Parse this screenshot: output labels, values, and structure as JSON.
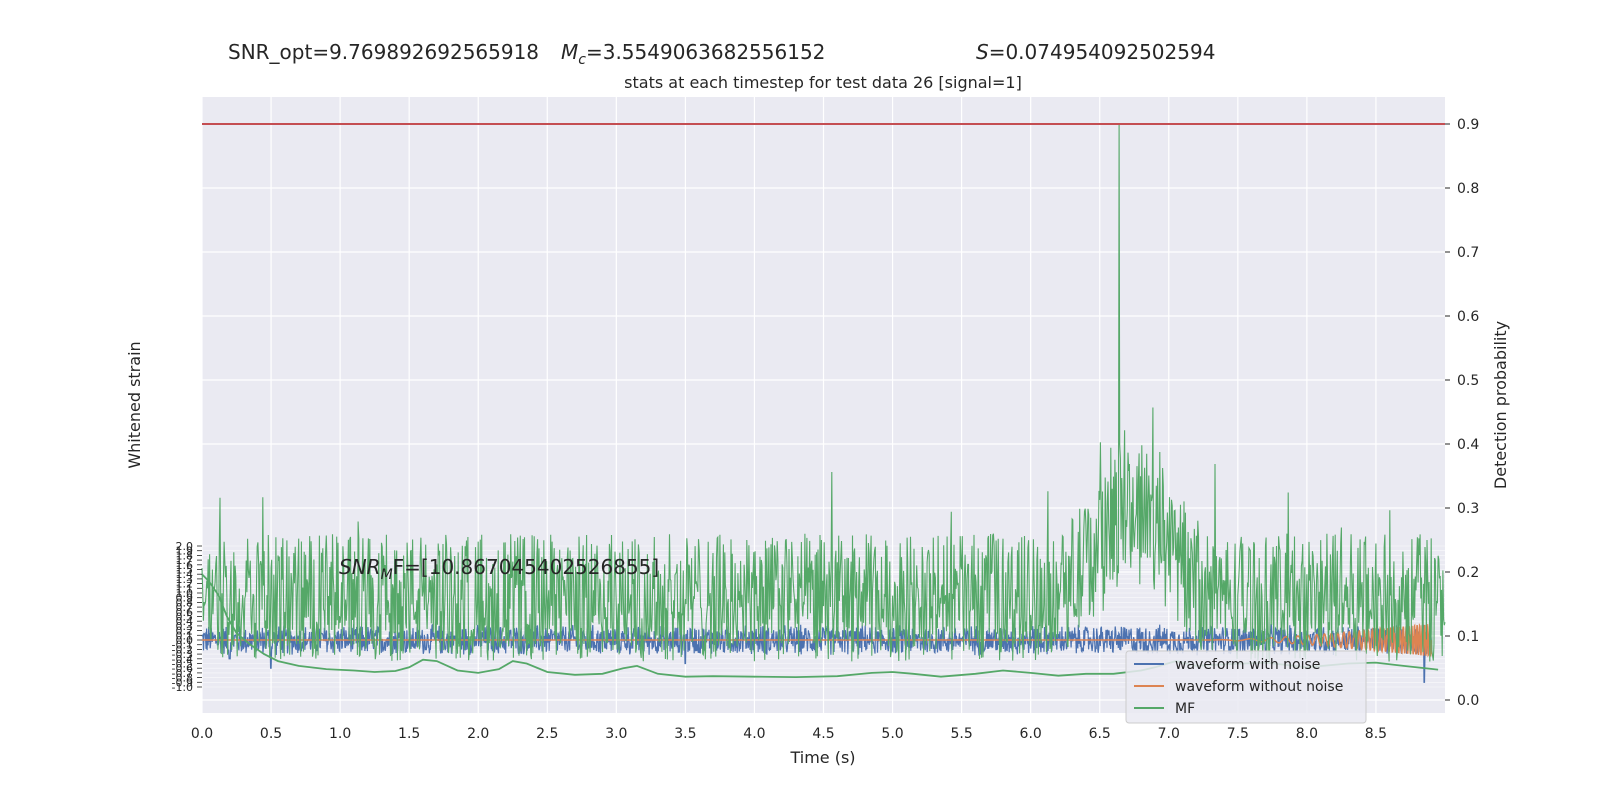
{
  "header": {
    "snr_opt": "SNR_opt=9.769892692565918",
    "mc_symbol": "M",
    "mc_sub": "c",
    "mc_value": "=3.5549063682556152",
    "s_symbol": "S",
    "s_value": "=0.074954092502594"
  },
  "chart_data": {
    "type": "line",
    "title": "stats at each timestep for test data 26 [signal=1]",
    "xlabel": "Time (s)",
    "ylabel_left": "Whitened strain",
    "ylabel_right": "Detection probability",
    "xlim": [
      0.0,
      9.0
    ],
    "x_ticks": [
      "0.0",
      "0.5",
      "1.0",
      "1.5",
      "2.0",
      "2.5",
      "3.0",
      "3.5",
      "4.0",
      "4.5",
      "5.0",
      "5.5",
      "6.0",
      "6.5",
      "7.0",
      "7.5",
      "8.0",
      "8.5"
    ],
    "ylim_right": [
      -0.013,
      0.942
    ],
    "y_ticks_right": [
      "0.0",
      "0.1",
      "0.2",
      "0.3",
      "0.4",
      "0.5",
      "0.6",
      "0.7",
      "0.8",
      "0.9"
    ],
    "ylim_left": [
      -1.2,
      2.0
    ],
    "y_ticks_left": [
      "2.0",
      "1.9",
      "1.8",
      "1.7",
      "1.6",
      "1.5",
      "1.4",
      "1.3",
      "1.2",
      "1.1",
      "1.0",
      "0.9",
      "0.8",
      "0.7",
      "0.6",
      "0.5",
      "0.4",
      "0.3",
      "0.2",
      "0.1",
      "0.0",
      "-0.1",
      "-0.2",
      "-0.3",
      "-0.4",
      "-0.5",
      "-0.6",
      "-0.7",
      "-0.8",
      "-0.9",
      "-1.0"
    ],
    "threshold": 0.9,
    "annotation": {
      "prefix": "SNR",
      "sub": "M",
      "suffix": "F=[10.867045402526855]",
      "x": 1.0,
      "y": 0.2
    },
    "legend_position": "lower right",
    "grid": true,
    "series": [
      {
        "name": "waveform with noise",
        "color": "#4c72b0",
        "axis": "left",
        "baseline": 0.0,
        "amplitude": 0.35,
        "spikes": [
          [
            0.2,
            -0.4
          ],
          [
            0.5,
            -0.6
          ],
          [
            3.5,
            -0.5
          ],
          [
            8.85,
            -0.9
          ]
        ]
      },
      {
        "name": "waveform without noise",
        "color": "#dd8452",
        "axis": "left",
        "chirp_start": 7.3,
        "chirp_end": 8.9,
        "max_amplitude": 0.35
      },
      {
        "name": "MF",
        "color": "#55a868",
        "axis": "left",
        "points": [
          [
            0.0,
            1.4
          ],
          [
            0.05,
            1.25
          ],
          [
            0.12,
            0.95
          ],
          [
            0.18,
            0.5
          ],
          [
            0.25,
            0.15
          ],
          [
            0.35,
            -0.1
          ],
          [
            0.45,
            -0.3
          ],
          [
            0.55,
            -0.45
          ],
          [
            0.7,
            -0.55
          ],
          [
            0.9,
            -0.62
          ],
          [
            1.1,
            -0.65
          ],
          [
            1.25,
            -0.68
          ],
          [
            1.4,
            -0.66
          ],
          [
            1.5,
            -0.58
          ],
          [
            1.6,
            -0.42
          ],
          [
            1.7,
            -0.45
          ],
          [
            1.85,
            -0.65
          ],
          [
            2.0,
            -0.7
          ],
          [
            2.15,
            -0.62
          ],
          [
            2.25,
            -0.45
          ],
          [
            2.35,
            -0.5
          ],
          [
            2.5,
            -0.68
          ],
          [
            2.7,
            -0.74
          ],
          [
            2.9,
            -0.72
          ],
          [
            3.05,
            -0.6
          ],
          [
            3.15,
            -0.55
          ],
          [
            3.3,
            -0.72
          ],
          [
            3.5,
            -0.78
          ],
          [
            3.7,
            -0.77
          ],
          [
            4.0,
            -0.78
          ],
          [
            4.3,
            -0.79
          ],
          [
            4.6,
            -0.77
          ],
          [
            4.85,
            -0.7
          ],
          [
            5.0,
            -0.68
          ],
          [
            5.15,
            -0.72
          ],
          [
            5.35,
            -0.78
          ],
          [
            5.6,
            -0.72
          ],
          [
            5.8,
            -0.65
          ],
          [
            6.0,
            -0.7
          ],
          [
            6.2,
            -0.76
          ],
          [
            6.4,
            -0.72
          ],
          [
            6.6,
            -0.72
          ],
          [
            6.8,
            -0.65
          ],
          [
            6.9,
            -0.58
          ],
          [
            7.05,
            -0.45
          ],
          [
            7.2,
            -0.55
          ],
          [
            7.4,
            -0.52
          ],
          [
            7.7,
            -0.48
          ],
          [
            8.0,
            -0.58
          ],
          [
            8.3,
            -0.5
          ],
          [
            8.5,
            -0.48
          ],
          [
            8.7,
            -0.55
          ],
          [
            8.95,
            -0.63
          ]
        ]
      },
      {
        "name": "Detection probability",
        "color": "#55a868",
        "axis": "right",
        "base": 0.16,
        "noise": 0.1,
        "peak_x": 6.64,
        "peak_y": 0.9,
        "hump_center": 6.75,
        "hump_width": 0.35,
        "hump_height": 0.18
      }
    ]
  },
  "colors": {
    "background": "#eaeaf2",
    "grid": "#ffffff",
    "threshold": "#c44e52",
    "text": "#262626"
  }
}
